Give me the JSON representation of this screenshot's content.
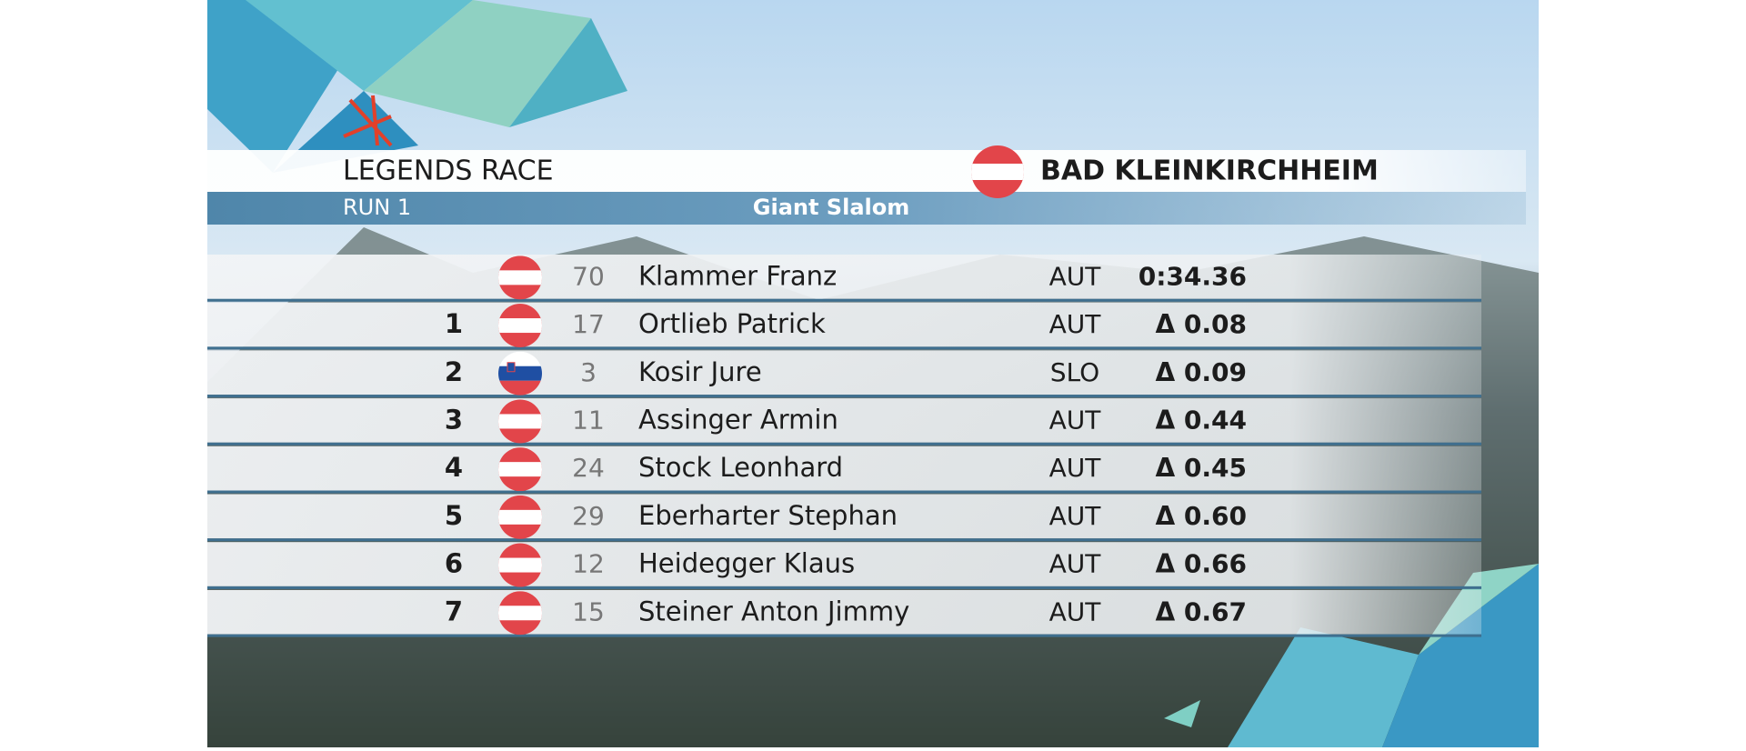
{
  "header": {
    "event": "LEGENDS RACE",
    "location": "BAD KLEINKIRCHHEIM",
    "run": "RUN 1",
    "discipline": "Giant Slalom"
  },
  "table": {
    "rows": [
      {
        "rank": null,
        "bib": "70",
        "name": "Klammer Franz",
        "nation": "AUT",
        "result": "0:34.36"
      },
      {
        "rank": "1",
        "bib": "17",
        "name": "Ortlieb Patrick",
        "nation": "AUT",
        "result": "Δ 0.08"
      },
      {
        "rank": "2",
        "bib": "3",
        "name": "Kosir Jure",
        "nation": "SLO",
        "result": "Δ 0.09"
      },
      {
        "rank": "3",
        "bib": "11",
        "name": "Assinger Armin",
        "nation": "AUT",
        "result": "Δ 0.44"
      },
      {
        "rank": "4",
        "bib": "24",
        "name": "Stock Leonhard",
        "nation": "AUT",
        "result": "Δ 0.45"
      },
      {
        "rank": "5",
        "bib": "29",
        "name": "Eberharter Stephan",
        "nation": "AUT",
        "result": "Δ 0.60"
      },
      {
        "rank": "6",
        "bib": "12",
        "name": "Heidegger Klaus",
        "nation": "AUT",
        "result": "Δ 0.66"
      },
      {
        "rank": "7",
        "bib": "15",
        "name": "Steiner Anton Jimmy",
        "nation": "AUT",
        "result": "Δ 0.67"
      }
    ]
  }
}
